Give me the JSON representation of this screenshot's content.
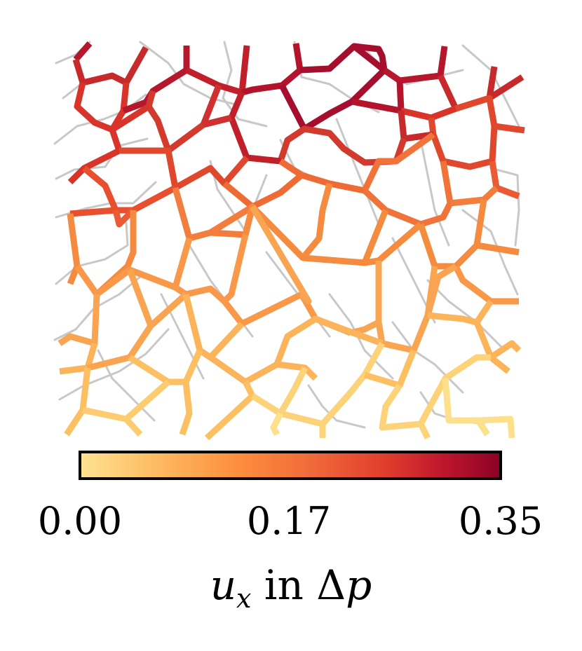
{
  "colorbar": {
    "ticks": [
      "0.00",
      "0.17",
      "0.35"
    ],
    "tick_values": [
      0.0,
      0.17,
      0.35
    ],
    "title_var": "u",
    "title_sub": "x",
    "title_mid": " in ",
    "title_delta": "Δ",
    "title_p": "p",
    "range": [
      0.0,
      0.35
    ],
    "colormap": "YlOrRd",
    "stops": [
      "#fee391",
      "#fdbb62",
      "#fd8d3c",
      "#f06a3a",
      "#e23e2d",
      "#c0182d",
      "#8c0026"
    ]
  },
  "network": {
    "reference_color": "#c8c8c8",
    "description_levels": "edge colour encodes u_x value"
  }
}
